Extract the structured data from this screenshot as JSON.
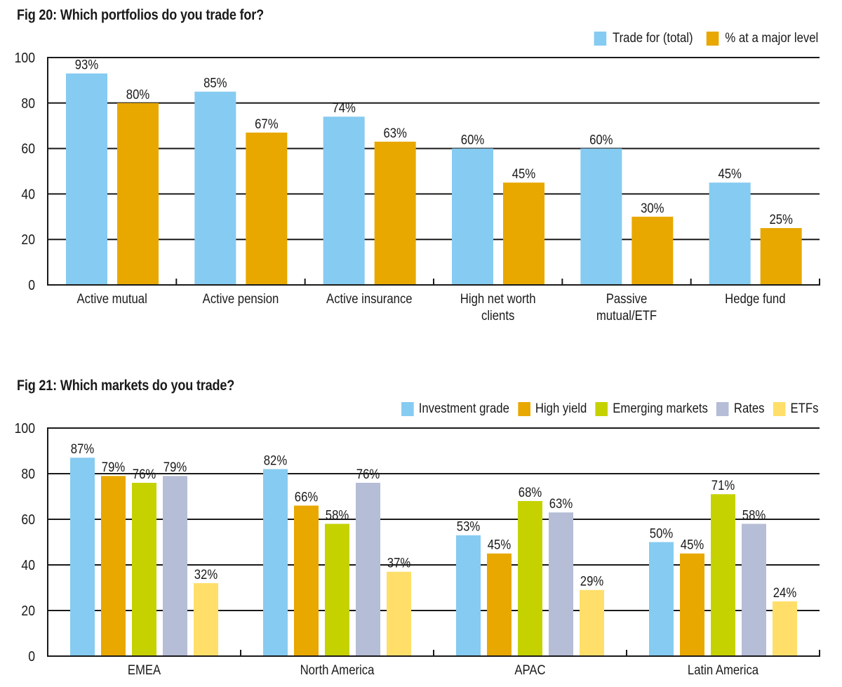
{
  "chart_data": [
    {
      "id": "fig20",
      "type": "bar",
      "title": "Fig 20: Which portfolios do you trade for?",
      "xlabel": "",
      "ylabel": "",
      "ylim": [
        0,
        100
      ],
      "yticks": [
        0,
        20,
        40,
        60,
        80,
        100
      ],
      "grid": true,
      "legend_position": "top-right",
      "categories": [
        [
          "Active mutual"
        ],
        [
          "Active pension"
        ],
        [
          "Active insurance"
        ],
        [
          "High net worth",
          "clients"
        ],
        [
          "Passive",
          "mutual/ETF"
        ],
        [
          "Hedge fund"
        ]
      ],
      "series": [
        {
          "name": "Trade for (total)",
          "color": "#86CBF1",
          "values": [
            93,
            85,
            74,
            60,
            60,
            45
          ]
        },
        {
          "name": "% at a major level",
          "color": "#E8A800",
          "values": [
            80,
            67,
            63,
            45,
            30,
            25
          ]
        }
      ],
      "value_suffix": "%"
    },
    {
      "id": "fig21",
      "type": "bar",
      "title": "Fig 21: Which markets do you trade?",
      "xlabel": "",
      "ylabel": "",
      "ylim": [
        0,
        100
      ],
      "yticks": [
        0,
        20,
        40,
        60,
        80,
        100
      ],
      "grid": true,
      "legend_position": "top-right",
      "categories": [
        [
          "EMEA"
        ],
        [
          "North America"
        ],
        [
          "APAC"
        ],
        [
          "Latin America"
        ]
      ],
      "series": [
        {
          "name": "Investment grade",
          "color": "#86CBF1",
          "values": [
            87,
            82,
            53,
            50
          ]
        },
        {
          "name": "High yield",
          "color": "#E8A800",
          "values": [
            79,
            66,
            45,
            45
          ]
        },
        {
          "name": "Emerging markets",
          "color": "#C6D200",
          "values": [
            76,
            58,
            68,
            71
          ]
        },
        {
          "name": "Rates",
          "color": "#B6BDD6",
          "values": [
            79,
            76,
            63,
            58
          ]
        },
        {
          "name": "ETFs",
          "color": "#FFDF6A",
          "values": [
            32,
            37,
            29,
            24
          ]
        }
      ],
      "value_suffix": "%"
    }
  ]
}
